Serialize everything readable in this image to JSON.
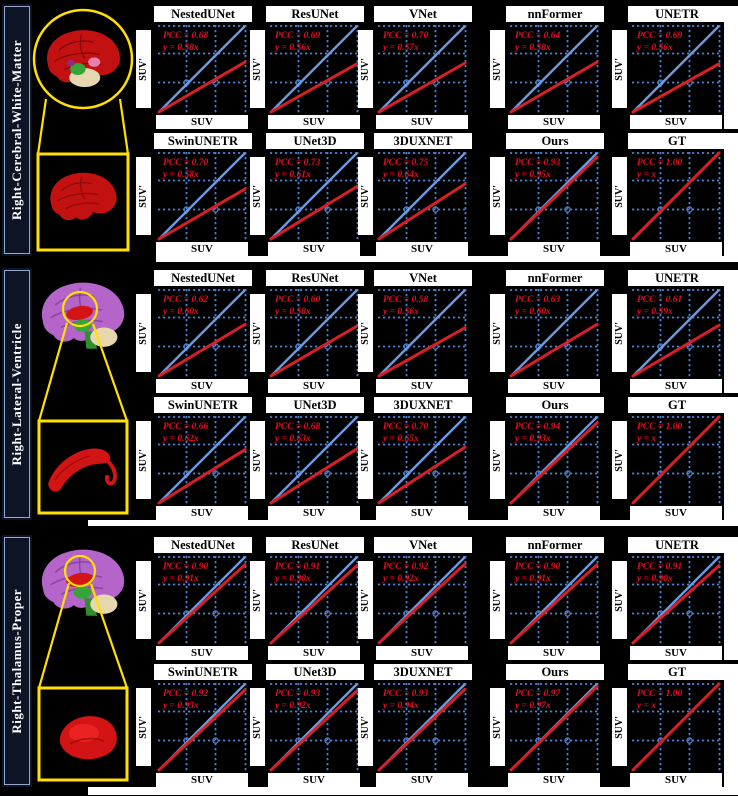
{
  "axes": {
    "x_label": "SUV",
    "y_label": "SUV'"
  },
  "colors": {
    "page_bg": "#000000",
    "panel_bg": "#000000",
    "strip_bg": "#ffffff",
    "grid": "#4d7fd0",
    "identity_line": "#6b9be0",
    "fit_line": "#d81f26",
    "annotation": "#e01020",
    "region_box_bg": "#0c1426",
    "region_box_border": "#97a8cc",
    "highlight_yellow": "#ffe000",
    "green_structure": "#37a437",
    "beige_structure": "#e6d7ae",
    "pink_structure": "#e87fb0",
    "magenta_structure": "#93288c"
  },
  "chart_data": [
    {
      "type": "scatter",
      "region_label": "Right-Cerebral-White-Matter",
      "xlabel": "SUV",
      "ylabel": "SUV'",
      "identity_line": "y = x",
      "brain": {
        "cortex_color": "#c31111",
        "zoom_color": "#c31111",
        "zoom_shape": "brain"
      },
      "rows": [
        [
          {
            "model": "NestedUNet",
            "pcc": 0.68,
            "pcc_text": "PCC = 0.68",
            "fit_text": "y = 0.58x",
            "fit_slope": 0.58
          },
          {
            "model": "ResUNet",
            "pcc": 0.69,
            "pcc_text": "PCC = 0.69",
            "fit_text": "y = 0.56x",
            "fit_slope": 0.56
          },
          {
            "model": "VNet",
            "pcc": 0.7,
            "pcc_text": "PCC = 0.70",
            "fit_text": "y = 0.57x",
            "fit_slope": 0.57
          },
          {
            "model": "nnFormer",
            "pcc": 0.64,
            "pcc_text": "PCC = 0.64",
            "fit_text": "y = 0.58x",
            "fit_slope": 0.58
          },
          {
            "model": "UNETR",
            "pcc": 0.69,
            "pcc_text": "PCC = 0.69",
            "fit_text": "y = 0.56x",
            "fit_slope": 0.56
          }
        ],
        [
          {
            "model": "SwinUNETR",
            "pcc": 0.7,
            "pcc_text": "PCC = 0.70",
            "fit_text": "y = 0.58x",
            "fit_slope": 0.58
          },
          {
            "model": "UNet3D",
            "pcc": 0.73,
            "pcc_text": "PCC = 0.73",
            "fit_text": "y = 0.61x",
            "fit_slope": 0.61
          },
          {
            "model": "3DUXNET",
            "pcc": 0.75,
            "pcc_text": "PCC = 0.75",
            "fit_text": "y = 0.64x",
            "fit_slope": 0.64
          },
          {
            "model": "Ours",
            "pcc": 0.93,
            "pcc_text": "PCC = 0.93",
            "fit_text": "y = 0.95x",
            "fit_slope": 0.95
          },
          {
            "model": "GT",
            "pcc": 1.0,
            "pcc_text": "PCC = 1.00",
            "fit_text": "y = x",
            "fit_slope": 1.0
          }
        ]
      ]
    },
    {
      "type": "scatter",
      "region_label": "Right-Lateral-Ventricle",
      "xlabel": "SUV",
      "ylabel": "SUV'",
      "identity_line": "y = x",
      "brain": {
        "cortex_color": "#b565c9",
        "zoom_color": "#d31414",
        "zoom_shape": "ventricle"
      },
      "rows": [
        [
          {
            "model": "NestedUNet",
            "pcc": 0.62,
            "pcc_text": "PCC = 0.62",
            "fit_text": "y = 0.60x",
            "fit_slope": 0.6
          },
          {
            "model": "ResUNet",
            "pcc": 0.6,
            "pcc_text": "PCC = 0.60",
            "fit_text": "y = 0.58x",
            "fit_slope": 0.58
          },
          {
            "model": "VNet",
            "pcc": 0.58,
            "pcc_text": "PCC = 0.58",
            "fit_text": "y = 0.56x",
            "fit_slope": 0.56
          },
          {
            "model": "nnFormer",
            "pcc": 0.63,
            "pcc_text": "PCC = 0.63",
            "fit_text": "y = 0.60x",
            "fit_slope": 0.6
          },
          {
            "model": "UNETR",
            "pcc": 0.61,
            "pcc_text": "PCC = 0.61",
            "fit_text": "y = 0.59x",
            "fit_slope": 0.59
          }
        ],
        [
          {
            "model": "SwinUNETR",
            "pcc": 0.66,
            "pcc_text": "PCC = 0.66",
            "fit_text": "y = 0.62x",
            "fit_slope": 0.62
          },
          {
            "model": "UNet3D",
            "pcc": 0.68,
            "pcc_text": "PCC = 0.68",
            "fit_text": "y = 0.63x",
            "fit_slope": 0.63
          },
          {
            "model": "3DUXNET",
            "pcc": 0.7,
            "pcc_text": "PCC = 0.70",
            "fit_text": "y = 0.65x",
            "fit_slope": 0.65
          },
          {
            "model": "Ours",
            "pcc": 0.94,
            "pcc_text": "PCC = 0.94",
            "fit_text": "y = 0.93x",
            "fit_slope": 0.93
          },
          {
            "model": "GT",
            "pcc": 1.0,
            "pcc_text": "PCC = 1.00",
            "fit_text": "y = x",
            "fit_slope": 1.0
          }
        ]
      ]
    },
    {
      "type": "scatter",
      "region_label": "Right-Thalamus-Proper",
      "xlabel": "SUV",
      "ylabel": "SUV'",
      "identity_line": "y = x",
      "brain": {
        "cortex_color": "#b565c9",
        "zoom_color": "#d31414",
        "zoom_shape": "blob"
      },
      "rows": [
        [
          {
            "model": "NestedUNet",
            "pcc": 0.9,
            "pcc_text": "PCC = 0.90",
            "fit_text": "y = 0.91x",
            "fit_slope": 0.91
          },
          {
            "model": "ResUNet",
            "pcc": 0.91,
            "pcc_text": "PCC = 0.91",
            "fit_text": "y = 0.90x",
            "fit_slope": 0.9
          },
          {
            "model": "VNet",
            "pcc": 0.92,
            "pcc_text": "PCC = 0.92",
            "fit_text": "y = 0.92x",
            "fit_slope": 0.92
          },
          {
            "model": "nnFormer",
            "pcc": 0.9,
            "pcc_text": "PCC = 0.90",
            "fit_text": "y = 0.91x",
            "fit_slope": 0.91
          },
          {
            "model": "UNETR",
            "pcc": 0.91,
            "pcc_text": "PCC = 0.91",
            "fit_text": "y = 0.90x",
            "fit_slope": 0.9
          }
        ],
        [
          {
            "model": "SwinUNETR",
            "pcc": 0.92,
            "pcc_text": "PCC = 0.92",
            "fit_text": "y = 0.93x",
            "fit_slope": 0.93
          },
          {
            "model": "UNet3D",
            "pcc": 0.93,
            "pcc_text": "PCC = 0.93",
            "fit_text": "y = 0.92x",
            "fit_slope": 0.92
          },
          {
            "model": "3DUXNET",
            "pcc": 0.93,
            "pcc_text": "PCC = 0.93",
            "fit_text": "y = 0.94x",
            "fit_slope": 0.94
          },
          {
            "model": "Ours",
            "pcc": 0.97,
            "pcc_text": "PCC = 0.97",
            "fit_text": "y = 0.97x",
            "fit_slope": 0.97
          },
          {
            "model": "GT",
            "pcc": 1.0,
            "pcc_text": "PCC = 1.00",
            "fit_text": "y = x",
            "fit_slope": 1.0
          }
        ]
      ]
    }
  ]
}
